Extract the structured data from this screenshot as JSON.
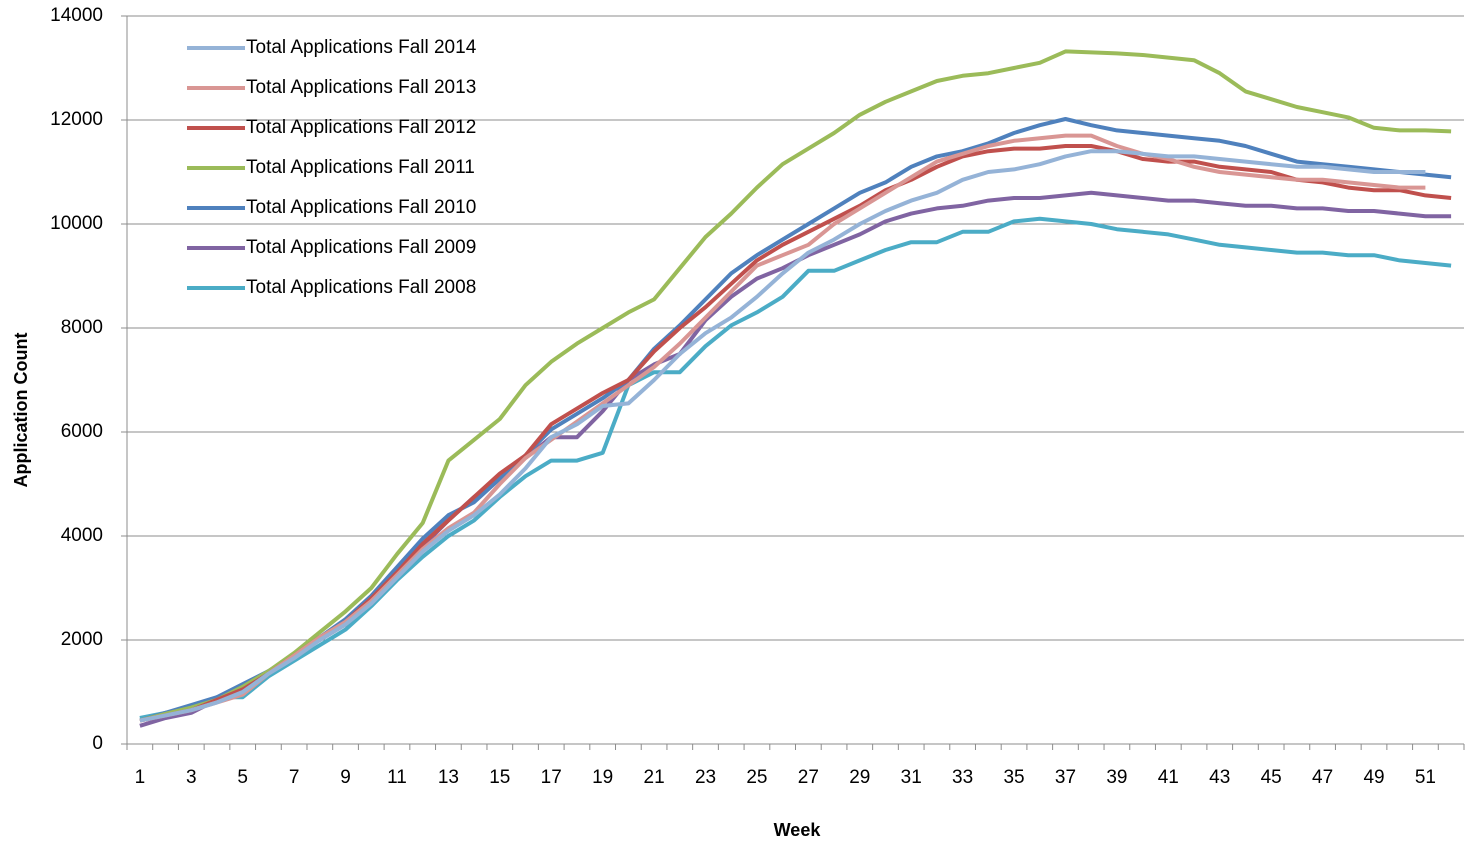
{
  "chart_data": {
    "type": "line",
    "xlabel": "Week",
    "ylabel": "Application Count",
    "categories": [
      1,
      null,
      3,
      null,
      5,
      null,
      7,
      null,
      9,
      null,
      11,
      null,
      13,
      null,
      15,
      null,
      17,
      null,
      19,
      null,
      21,
      null,
      23,
      null,
      25,
      null,
      27,
      null,
      29,
      null,
      31,
      null,
      33,
      null,
      35,
      null,
      37,
      null,
      39,
      null,
      41,
      null,
      43,
      null,
      45,
      null,
      47,
      null,
      49,
      null,
      51,
      null
    ],
    "ylim": [
      0,
      14000
    ],
    "yticks": [
      0,
      2000,
      4000,
      6000,
      8000,
      10000,
      12000,
      14000
    ],
    "grid": true,
    "legend": "upper left",
    "series": [
      {
        "name": "Total Applications Fall 2014",
        "color": "#95b3d7",
        "values": [
          450,
          550,
          650,
          800,
          1000,
          1350,
          1650,
          2000,
          2300,
          2700,
          3200,
          3700,
          4100,
          4400,
          4800,
          5300,
          5900,
          6150,
          6500,
          6550,
          7000,
          7500,
          7900,
          8200,
          8600,
          9050,
          9450,
          9700,
          10000,
          10250,
          10450,
          10600,
          10850,
          11000,
          11050,
          11150,
          11300,
          11400,
          11400,
          11350,
          11300,
          11300,
          11250,
          11200,
          11150,
          11100,
          11100,
          11050,
          11000,
          11000,
          11000,
          null
        ]
      },
      {
        "name": "Total Applications Fall 2013",
        "color": "#d99694",
        "values": [
          450,
          550,
          650,
          800,
          950,
          1350,
          1700,
          2050,
          2350,
          2750,
          3250,
          3750,
          4150,
          4450,
          5000,
          5500,
          5850,
          6200,
          6550,
          6900,
          7250,
          7700,
          8200,
          8700,
          9200,
          9400,
          9600,
          10000,
          10300,
          10600,
          10900,
          11200,
          11350,
          11500,
          11600,
          11650,
          11700,
          11700,
          11500,
          11350,
          11250,
          11100,
          11000,
          10950,
          10900,
          10850,
          10850,
          10800,
          10750,
          10700,
          10700,
          null
        ]
      },
      {
        "name": "Total Applications Fall 2012",
        "color": "#c0504d",
        "values": [
          450,
          550,
          650,
          850,
          1050,
          1350,
          1700,
          2050,
          2350,
          2800,
          3300,
          3850,
          4300,
          4750,
          5200,
          5550,
          6150,
          6450,
          6750,
          7000,
          7550,
          8000,
          8400,
          8850,
          9300,
          9600,
          9850,
          10100,
          10350,
          10650,
          10850,
          11100,
          11300,
          11400,
          11450,
          11450,
          11500,
          11500,
          11400,
          11250,
          11200,
          11200,
          11100,
          11050,
          11000,
          10850,
          10800,
          10700,
          10650,
          10650,
          10550,
          10500
        ]
      },
      {
        "name": "Total Applications Fall 2011",
        "color": "#9bbb59",
        "values": [
          450,
          580,
          700,
          850,
          1100,
          1400,
          1750,
          2150,
          2550,
          3000,
          3650,
          4250,
          5450,
          5850,
          6250,
          6900,
          7350,
          7700,
          8000,
          8300,
          8550,
          9150,
          9750,
          10200,
          10700,
          11150,
          11450,
          11750,
          12100,
          12350,
          12550,
          12750,
          12850,
          12900,
          13000,
          13100,
          13320,
          13300,
          13280,
          13250,
          13200,
          13150,
          12900,
          12550,
          12400,
          12250,
          12150,
          12050,
          11850,
          11800,
          11800,
          11780
        ]
      },
      {
        "name": "Total Applications Fall 2010",
        "color": "#4f81bd",
        "values": [
          450,
          600,
          750,
          900,
          1150,
          1400,
          1700,
          2050,
          2400,
          2850,
          3400,
          3950,
          4400,
          4650,
          5100,
          5550,
          6050,
          6350,
          6650,
          7000,
          7600,
          8050,
          8550,
          9050,
          9400,
          9700,
          10000,
          10300,
          10600,
          10800,
          11100,
          11300,
          11400,
          11550,
          11750,
          11900,
          12020,
          11900,
          11800,
          11750,
          11700,
          11650,
          11600,
          11500,
          11350,
          11200,
          11150,
          11100,
          11050,
          11000,
          10950,
          10900
        ]
      },
      {
        "name": "Total Applications Fall 2009",
        "color": "#8064a2",
        "values": [
          350,
          500,
          600,
          850,
          1050,
          1400,
          1700,
          2000,
          2300,
          2750,
          3250,
          3800,
          4300,
          4750,
          5100,
          5500,
          5900,
          5900,
          6400,
          7000,
          7300,
          7500,
          8150,
          8600,
          8950,
          9150,
          9400,
          9600,
          9800,
          10050,
          10200,
          10300,
          10350,
          10450,
          10500,
          10500,
          10550,
          10600,
          10550,
          10500,
          10450,
          10450,
          10400,
          10350,
          10350,
          10300,
          10300,
          10250,
          10250,
          10200,
          10150,
          10150
        ]
      },
      {
        "name": "Total Applications Fall 2008",
        "color": "#4bacc6",
        "values": [
          500,
          600,
          650,
          900,
          900,
          1300,
          1600,
          1900,
          2200,
          2650,
          3150,
          3600,
          4000,
          4300,
          4750,
          5150,
          5450,
          5450,
          5600,
          6900,
          7150,
          7150,
          7650,
          8050,
          8300,
          8600,
          9100,
          9100,
          9300,
          9500,
          9650,
          9650,
          9850,
          9850,
          10050,
          10100,
          10050,
          10000,
          9900,
          9850,
          9800,
          9700,
          9600,
          9550,
          9500,
          9450,
          9450,
          9400,
          9400,
          9300,
          9250,
          9200
        ]
      }
    ]
  }
}
